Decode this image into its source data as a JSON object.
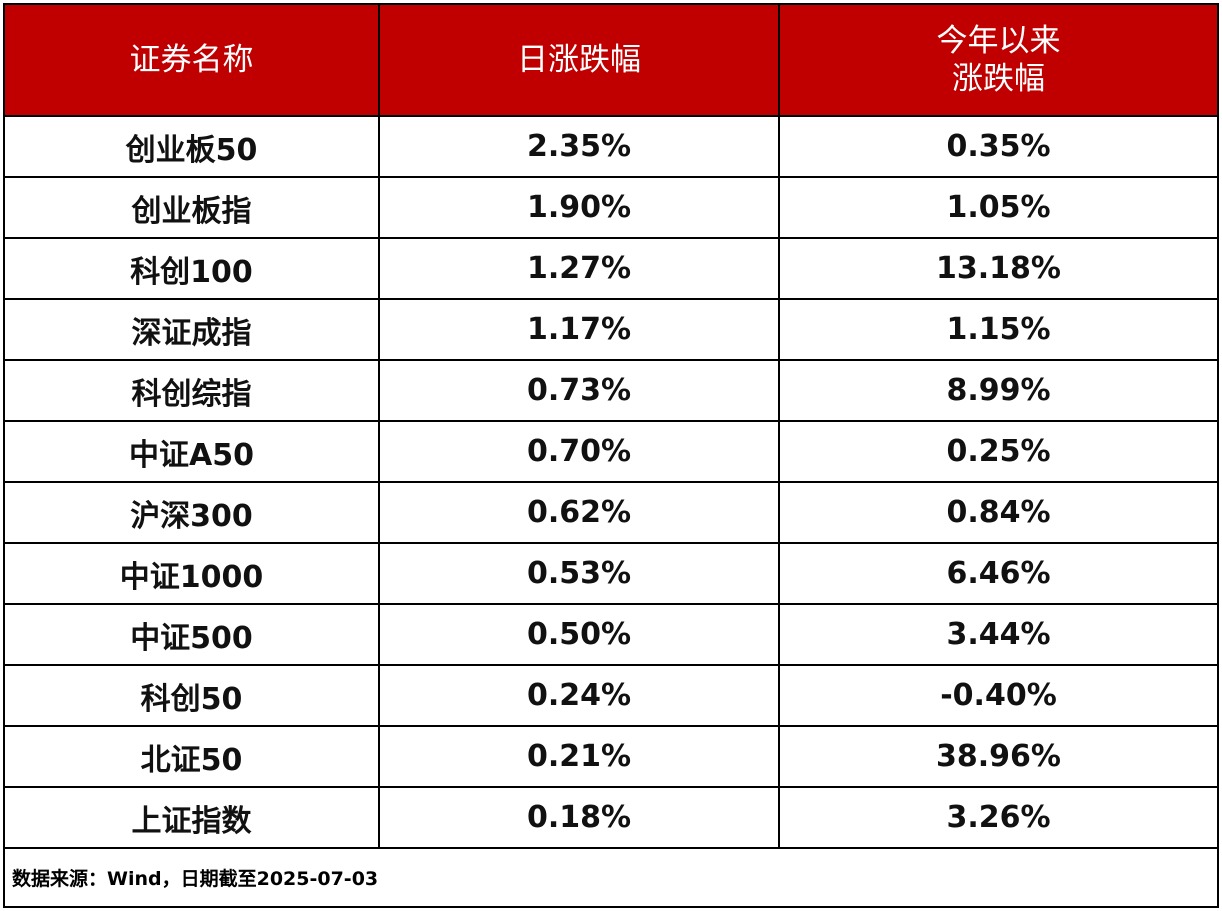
{
  "table": {
    "headers": [
      "证券名称",
      "日涨跌幅",
      "今年以来\n涨跌幅"
    ],
    "rows": [
      [
        "创业板50",
        "2.35%",
        "0.35%"
      ],
      [
        "创业板指",
        "1.90%",
        "1.05%"
      ],
      [
        "科创100",
        "1.27%",
        "13.18%"
      ],
      [
        "深证成指",
        "1.17%",
        "1.15%"
      ],
      [
        "科创综指",
        "0.73%",
        "8.99%"
      ],
      [
        "中证A50",
        "0.70%",
        "0.25%"
      ],
      [
        "沪深300",
        "0.62%",
        "0.84%"
      ],
      [
        "中证1000",
        "0.53%",
        "6.46%"
      ],
      [
        "中证500",
        "0.50%",
        "3.44%"
      ],
      [
        "科创50",
        "0.24%",
        "-0.40%"
      ],
      [
        "北证50",
        "0.21%",
        "38.96%"
      ],
      [
        "上证指数",
        "0.18%",
        "3.26%"
      ]
    ],
    "footer": "数据来源：Wind，日期截至2025-07-03"
  }
}
